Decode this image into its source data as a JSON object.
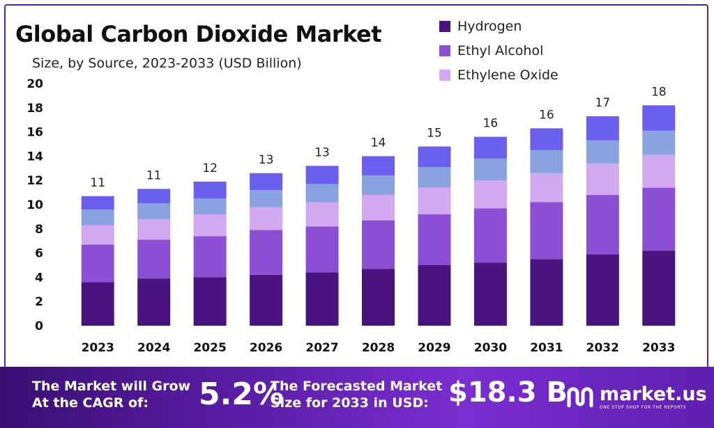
{
  "header": {
    "title": "Global Carbon Dioxide Market",
    "subtitle": "Size, by Source, 2023-2033 (USD Billion)"
  },
  "legend": [
    {
      "label": "Hydrogen",
      "color": "#4a1480"
    },
    {
      "label": "Ethyl Alcohol",
      "color": "#8c4fd4"
    },
    {
      "label": "Ethylene Oxide",
      "color": "#d2a9ee"
    }
  ],
  "chart_data": {
    "type": "bar",
    "stacked": true,
    "categories": [
      "2023",
      "2024",
      "2025",
      "2026",
      "2027",
      "2028",
      "2029",
      "2030",
      "2031",
      "2032",
      "2033"
    ],
    "series": [
      {
        "name": "Hydrogen",
        "color": "#4a1480",
        "values": [
          3.6,
          3.9,
          4.0,
          4.2,
          4.4,
          4.7,
          5.0,
          5.2,
          5.5,
          5.9,
          6.2
        ]
      },
      {
        "name": "Ethyl Alcohol",
        "color": "#8c4fd4",
        "values": [
          3.1,
          3.2,
          3.4,
          3.7,
          3.8,
          4.0,
          4.2,
          4.5,
          4.7,
          4.9,
          5.2
        ]
      },
      {
        "name": "Ethylene Oxide",
        "color": "#d2a9ee",
        "values": [
          1.6,
          1.7,
          1.8,
          1.9,
          2.0,
          2.1,
          2.2,
          2.3,
          2.4,
          2.6,
          2.7
        ]
      },
      {
        "color": "#8aa2e0",
        "values": [
          1.3,
          1.3,
          1.3,
          1.4,
          1.5,
          1.6,
          1.7,
          1.8,
          1.9,
          1.9,
          2.0
        ]
      },
      {
        "color": "#6b60ee",
        "values": [
          1.1,
          1.2,
          1.4,
          1.4,
          1.5,
          1.6,
          1.7,
          1.8,
          1.8,
          2.0,
          2.1
        ]
      }
    ],
    "totals": [
      "11",
      "11",
      "12",
      "13",
      "13",
      "14",
      "15",
      "16",
      "16",
      "17",
      "18"
    ],
    "ylim": [
      0,
      20
    ],
    "yticks": [
      0,
      2,
      4,
      6,
      8,
      10,
      12,
      14,
      16,
      18,
      20
    ],
    "grid": false,
    "legend_position": "top-right"
  },
  "footer": {
    "grow_line1": "The Market will Grow",
    "grow_line2": "At the CAGR of:",
    "cagr": "5.2%",
    "forecast_line1": "The Forecasted Market",
    "forecast_line2": "Size for 2033 in USD:",
    "market_size": "$18.3 B",
    "brand_name": "market.us",
    "brand_tagline": "ONE STOP SHOP FOR THE REPORTS"
  }
}
